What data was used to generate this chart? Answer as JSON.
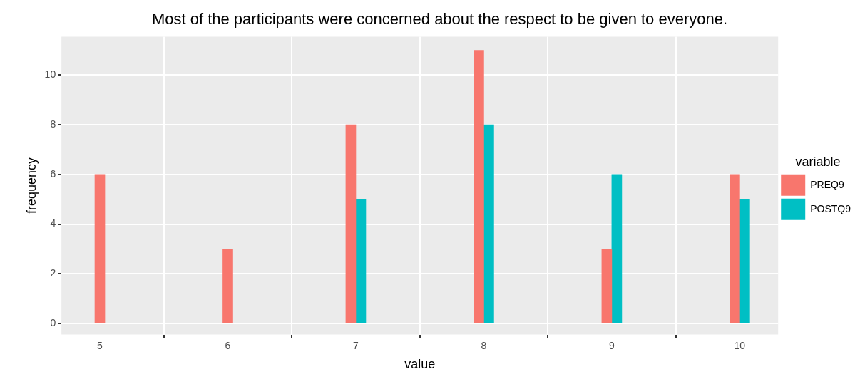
{
  "chart_data": {
    "type": "bar",
    "title": "Most of the participants were concerned about the respect to be given to everyone.",
    "xlabel": "value",
    "ylabel": "frequency",
    "legend_title": "variable",
    "x": [
      5,
      6,
      7,
      8,
      9,
      10
    ],
    "series": [
      {
        "name": "PREQ9",
        "color": "#f8766d",
        "values": [
          6,
          3,
          8,
          11,
          3,
          6
        ]
      },
      {
        "name": "POSTQ9",
        "color": "#00bfc4",
        "values": [
          null,
          null,
          5,
          8,
          6,
          5
        ]
      }
    ],
    "xlim": [
      4.7,
      10.3
    ],
    "xticks": [
      5,
      6,
      7,
      8,
      9,
      10
    ],
    "ylim": [
      -0.45,
      11.55
    ],
    "yticks": [
      0,
      2,
      4,
      6,
      8,
      10
    ],
    "grid": true,
    "legend": "right"
  }
}
